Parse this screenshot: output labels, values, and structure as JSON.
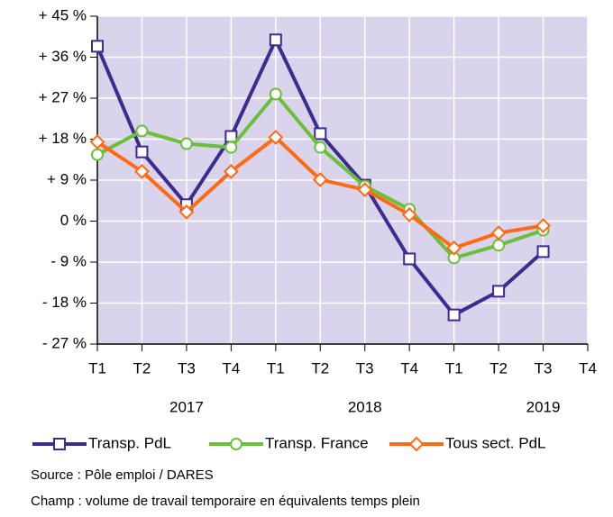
{
  "chart_data": {
    "type": "line",
    "categories": [
      "T1",
      "T2",
      "T3",
      "T4",
      "T1",
      "T2",
      "T3",
      "T4",
      "T1",
      "T2",
      "T3",
      "T4"
    ],
    "year_groups": [
      "2017",
      "2018",
      "2019"
    ],
    "series": [
      {
        "name": "Transp. PdL",
        "color": "#3d2b8e",
        "marker": "square",
        "values": [
          38.4,
          15.2,
          3.6,
          18.6,
          39.8,
          19.2,
          7.9,
          -8.3,
          -20.6,
          -15.4,
          -6.7,
          null
        ]
      },
      {
        "name": "Transp. France",
        "color": "#6cbf3a",
        "marker": "circle",
        "values": [
          14.6,
          19.8,
          17.0,
          16.2,
          27.9,
          16.2,
          7.7,
          2.6,
          -8.1,
          -5.3,
          -2.0,
          null
        ]
      },
      {
        "name": "Tous sect. PdL",
        "color": "#ff6a13",
        "marker": "diamond",
        "values": [
          17.4,
          10.9,
          2.0,
          10.9,
          18.4,
          9.1,
          6.9,
          1.4,
          -5.9,
          -2.6,
          -1.0,
          null
        ]
      }
    ],
    "ylim": [
      -27,
      45
    ],
    "yticks": [
      {
        "value": -27,
        "label": "- 27 %"
      },
      {
        "value": -18,
        "label": "- 18 %"
      },
      {
        "value": -9,
        "label": "- 9 %"
      },
      {
        "value": 0,
        "label": "0 %"
      },
      {
        "value": 9,
        "label": "+ 9 %"
      },
      {
        "value": 18,
        "label": "+ 18 %"
      },
      {
        "value": 27,
        "label": "+ 27 %"
      },
      {
        "value": 36,
        "label": "+ 36 %"
      },
      {
        "value": 45,
        "label": "+ 45 %"
      }
    ],
    "grid": true,
    "plot_background": "#d9d3ec",
    "notes": [
      "Source : Pôle emploi / DARES",
      "Champ : volume de travail temporaire en équivalents temps plein"
    ]
  }
}
